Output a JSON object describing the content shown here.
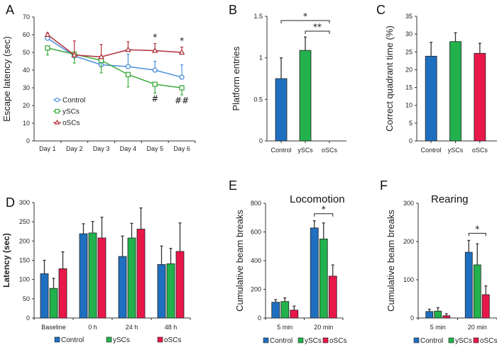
{
  "colors": {
    "Control": "#1f6fc0",
    "ySCs": "#22b14c",
    "oSCs": "#e8174a",
    "line_Control": "#4a90d9",
    "line_ySCs": "#3caa3c",
    "line_oSCs": "#b0303a",
    "errorbar": "#333333"
  },
  "chart_data": [
    {
      "panel": "A",
      "type": "line",
      "title": "",
      "xlabel": "",
      "ylabel": "Escape latency (sec)",
      "ylim": [
        0,
        70
      ],
      "yticks": [
        0,
        10,
        20,
        30,
        40,
        50,
        60,
        70
      ],
      "categories": [
        "Day 1",
        "Day 2",
        "Day 3",
        "Day 4",
        "Day 5",
        "Day 6"
      ],
      "series": [
        {
          "name": "Control",
          "marker": "circle",
          "values": [
            58,
            48,
            43,
            42,
            40,
            36
          ],
          "errors": [
            1,
            1,
            1,
            7,
            5,
            7
          ]
        },
        {
          "name": "ySCs",
          "marker": "square",
          "values": [
            52.5,
            49,
            45.5,
            37.5,
            32,
            30
          ],
          "errors": [
            4,
            5,
            7,
            7,
            5,
            4
          ]
        },
        {
          "name": "oSCs",
          "marker": "triangle",
          "values": [
            60,
            48.5,
            47.5,
            51.5,
            51,
            50
          ],
          "errors": [
            1,
            8,
            7,
            4.5,
            4,
            3
          ]
        }
      ],
      "annotations": [
        {
          "category": "Day 5",
          "text": "*",
          "position": "above"
        },
        {
          "category": "Day 6",
          "text": "*",
          "position": "above"
        },
        {
          "category": "Day 5",
          "text": "#",
          "position": "below"
        },
        {
          "category": "Day 6",
          "text": "##",
          "position": "below"
        }
      ],
      "legend": [
        "Control",
        "ySCs",
        "oSCs"
      ],
      "legend_position": "lower-left"
    },
    {
      "panel": "B",
      "type": "bar",
      "title": "",
      "ylabel": "Platform entries",
      "ylim": [
        0,
        1.5
      ],
      "yticks": [
        0,
        0.5,
        1,
        1.5
      ],
      "ytick_labels": [
        "0",
        "0.5",
        "1",
        "1.5"
      ],
      "categories": [
        "Control",
        "ySCs",
        "oSCs"
      ],
      "values": [
        0.75,
        1.09,
        0
      ],
      "errors": [
        0.25,
        0.16,
        0
      ],
      "annotations": [
        {
          "from": "Control",
          "to": "oSCs",
          "text": "*"
        },
        {
          "from": "ySCs",
          "to": "oSCs",
          "text": "**"
        }
      ]
    },
    {
      "panel": "C",
      "type": "bar",
      "title": "",
      "ylabel": "Correct quadrant time (%)",
      "ylim": [
        0,
        35
      ],
      "yticks": [
        0,
        5,
        10,
        15,
        20,
        25,
        30,
        35
      ],
      "categories": [
        "Control",
        "ySCs",
        "oSCs"
      ],
      "values": [
        23.8,
        27.9,
        24.6
      ],
      "errors": [
        3.9,
        2.5,
        2.8
      ]
    },
    {
      "panel": "D",
      "type": "bar",
      "title": "",
      "ylabel": "Latency (sec)",
      "ylim": [
        0,
        300
      ],
      "yticks": [
        0,
        50,
        100,
        150,
        200,
        250,
        300
      ],
      "categories": [
        "Baseline",
        "0 h",
        "24 h",
        "48 h"
      ],
      "series": [
        {
          "name": "Control",
          "values": [
            115,
            219,
            160,
            139
          ],
          "errors": [
            35,
            26,
            53,
            48
          ]
        },
        {
          "name": "ySCs",
          "values": [
            77,
            221,
            208,
            141
          ],
          "errors": [
            26,
            30,
            38,
            40
          ]
        },
        {
          "name": "oSCs",
          "values": [
            128,
            208,
            231,
            173
          ],
          "errors": [
            44,
            54,
            55,
            74
          ]
        }
      ],
      "legend": [
        "Control",
        "ySCs",
        "oSCs"
      ],
      "legend_position": "bottom"
    },
    {
      "panel": "E",
      "type": "bar",
      "title": "Locomotion",
      "ylabel": "Cumulative beam breaks",
      "ylim": [
        0,
        800
      ],
      "yticks": [
        0,
        200,
        400,
        600,
        800
      ],
      "categories": [
        "5 min",
        "20 min"
      ],
      "series": [
        {
          "name": "Control",
          "values": [
            110,
            628
          ],
          "errors": [
            18,
            50
          ]
        },
        {
          "name": "ySCs",
          "values": [
            115,
            551
          ],
          "errors": [
            25,
            112
          ]
        },
        {
          "name": "oSCs",
          "values": [
            55,
            292
          ],
          "errors": [
            28,
            78
          ]
        }
      ],
      "annotations": [
        {
          "category": "20 min",
          "from": "Control",
          "to": "oSCs",
          "text": "*"
        }
      ],
      "legend": [
        "Control",
        "ySCs",
        "oSCs"
      ],
      "legend_position": "bottom"
    },
    {
      "panel": "F",
      "type": "bar",
      "title": "Rearing",
      "ylabel": "Cumulative beam breaks",
      "ylim": [
        0,
        300
      ],
      "yticks": [
        0,
        100,
        200,
        300
      ],
      "categories": [
        "5 min",
        "20 min"
      ],
      "series": [
        {
          "name": "Control",
          "values": [
            17,
            172
          ],
          "errors": [
            6,
            31
          ]
        },
        {
          "name": "ySCs",
          "values": [
            18,
            139
          ],
          "errors": [
            9,
            55
          ]
        },
        {
          "name": "oSCs",
          "values": [
            6,
            61
          ],
          "errors": [
            5,
            23
          ]
        }
      ],
      "annotations": [
        {
          "category": "20 min",
          "from": "Control",
          "to": "oSCs",
          "text": "*"
        }
      ],
      "legend": [
        "Control",
        "ySCs",
        "oSCs"
      ],
      "legend_position": "bottom"
    }
  ]
}
